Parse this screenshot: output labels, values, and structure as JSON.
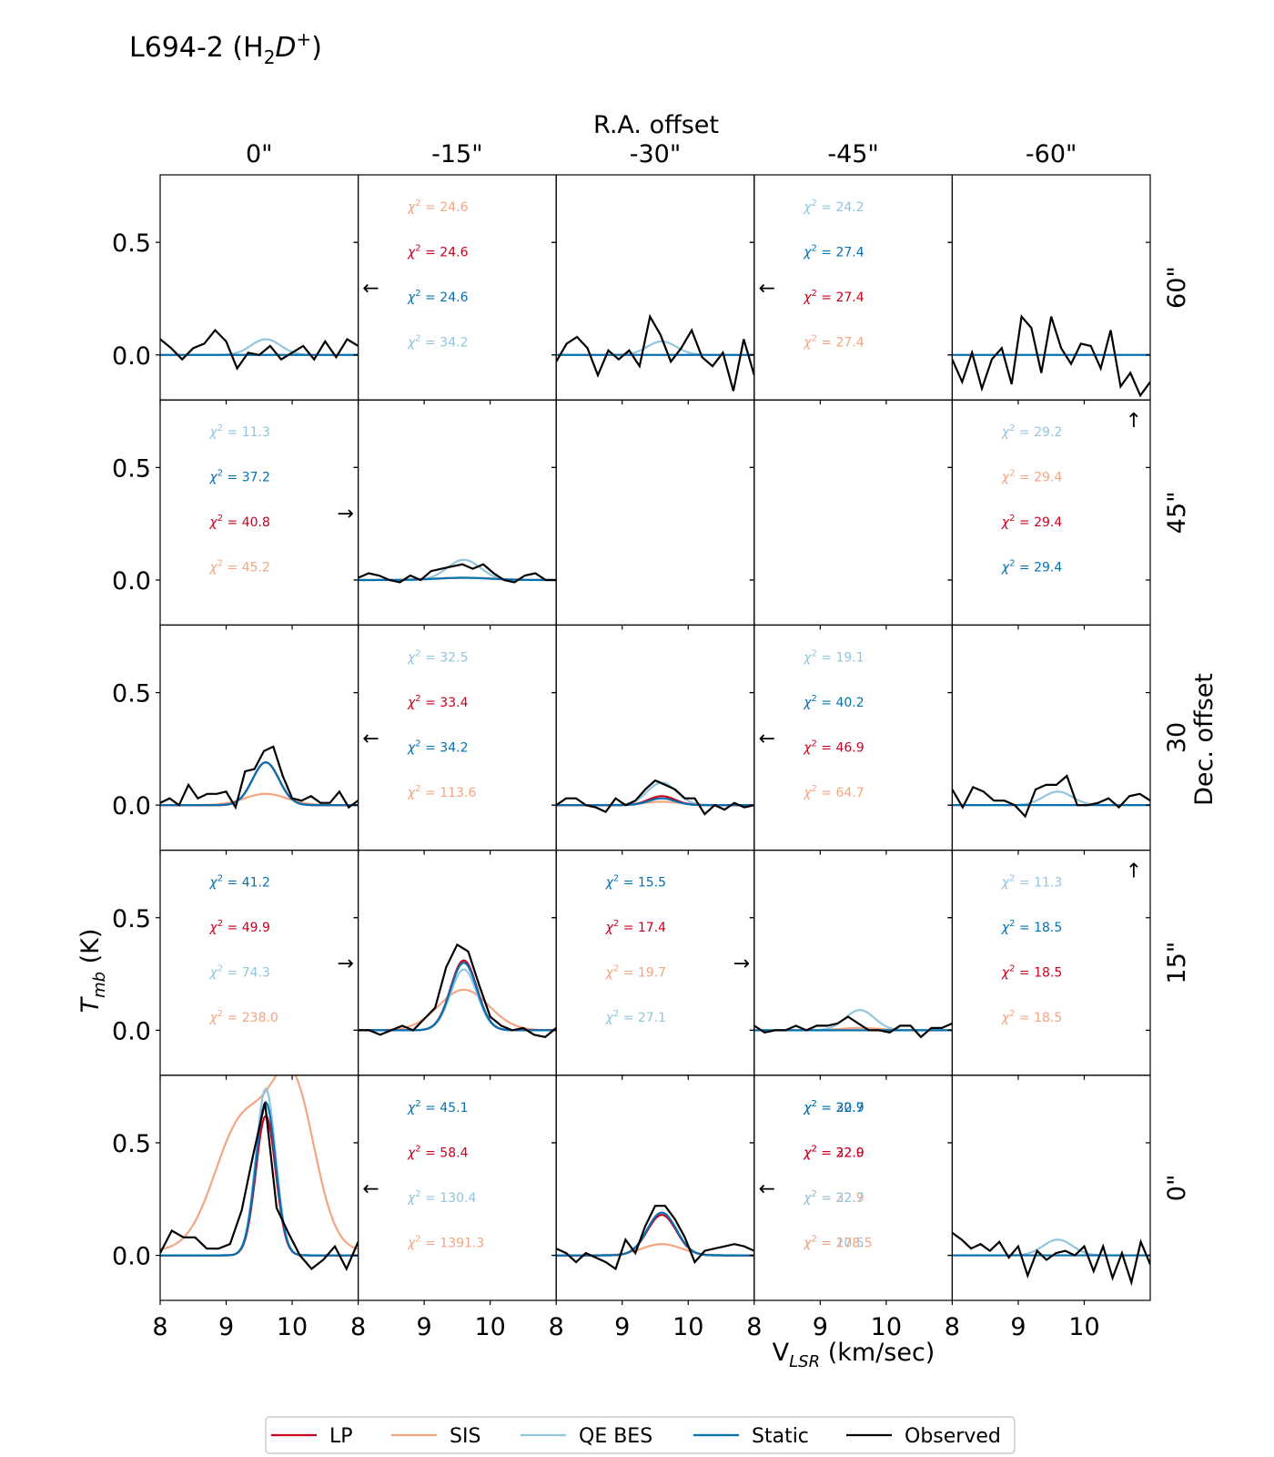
{
  "chart_data": {
    "type": "line",
    "title": "L694-2 (H",
    "title_sub": "2",
    "title_ital": "D",
    "title_sup": "+",
    "title_close": ")",
    "top_label": "R.A. offset",
    "side_label": "Dec. offset",
    "xlabel_main": "V",
    "xlabel_sub": "LSR",
    "xlabel_unit": " (km/sec)",
    "ylabel_main": "T",
    "ylabel_sub": "mb",
    "ylabel_unit": " (K)",
    "col_labels": [
      "0\"",
      "-15\"",
      "-30\"",
      "-45\"",
      "-60\""
    ],
    "row_labels": [
      "60\"",
      "45\"",
      "30",
      "15\"",
      "0\""
    ],
    "x_ticks": [
      8,
      9,
      10
    ],
    "y_ticks": [
      0.0,
      0.5
    ],
    "y_tick_labels": [
      "0.0",
      "0.5"
    ],
    "xlim": [
      8.0,
      11.0
    ],
    "ylim": [
      -0.2,
      0.8
    ],
    "colors": {
      "LP": "#ca0020",
      "SIS": "#f4a582",
      "QE BES": "#92c5de",
      "Static": "#0571b0",
      "Observed": "#000000"
    },
    "legend": [
      "LP",
      "SIS",
      "QE BES",
      "Static",
      "Observed"
    ],
    "chi_prefix": "χ",
    "panels": [
      {
        "row": 0,
        "col": 0,
        "arrow": "",
        "chi": [],
        "models": {
          "qe": [
            9.6,
            0.07,
            0.22
          ]
        },
        "observed": [
          0.07,
          0.03,
          -0.02,
          0.03,
          0.05,
          0.11,
          0.06,
          -0.06,
          0.01,
          0.0,
          0.04,
          -0.02,
          0.01,
          0.04,
          -0.02,
          0.06,
          -0.01,
          0.07,
          0.04
        ]
      },
      {
        "row": 0,
        "col": 1,
        "arrow": "←",
        "chi": [
          {
            "s": "SIS",
            "v": "24.6"
          },
          {
            "s": "LP",
            "v": "24.6"
          },
          {
            "s": "Static",
            "v": "24.6"
          },
          {
            "s": "QE BES",
            "v": "34.2"
          }
        ],
        "models": {},
        "observed": []
      },
      {
        "row": 0,
        "col": 2,
        "arrow": "",
        "chi": [],
        "models": {
          "qe": [
            9.6,
            0.06,
            0.22
          ]
        },
        "observed": [
          -0.03,
          0.05,
          0.08,
          0.03,
          -0.09,
          0.02,
          -0.02,
          0.02,
          -0.05,
          0.17,
          0.09,
          -0.03,
          0.03,
          0.11,
          -0.01,
          -0.05,
          0.01,
          -0.16,
          0.07,
          -0.09
        ]
      },
      {
        "row": 0,
        "col": 3,
        "arrow": "←",
        "chi": [
          {
            "s": "QE BES",
            "v": "24.2"
          },
          {
            "s": "Static",
            "v": "27.4"
          },
          {
            "s": "LP",
            "v": "27.4"
          },
          {
            "s": "SIS",
            "v": "27.4"
          }
        ],
        "models": {},
        "observed": []
      },
      {
        "row": 0,
        "col": 4,
        "arrow": "",
        "chi": [],
        "models": {},
        "observed": [
          -0.02,
          -0.12,
          0.01,
          -0.15,
          -0.02,
          0.03,
          -0.13,
          0.17,
          0.12,
          -0.08,
          0.17,
          0.03,
          -0.04,
          0.05,
          0.04,
          -0.06,
          0.11,
          -0.14,
          -0.08,
          -0.18,
          -0.12
        ]
      },
      {
        "row": 1,
        "col": 0,
        "arrow": "→",
        "chi": [
          {
            "s": "QE BES",
            "v": "11.3"
          },
          {
            "s": "Static",
            "v": "37.2"
          },
          {
            "s": "LP",
            "v": "40.8"
          },
          {
            "s": "SIS",
            "v": "45.2"
          }
        ],
        "models": {},
        "observed": []
      },
      {
        "row": 1,
        "col": 1,
        "arrow": "",
        "chi": [],
        "models": {
          "qe": [
            9.6,
            0.09,
            0.25
          ],
          "st": [
            9.6,
            0.01,
            0.4
          ],
          "sis": [
            9.6,
            0.01,
            0.5
          ]
        },
        "observed": [
          0.01,
          0.03,
          0.02,
          0.0,
          -0.01,
          0.02,
          0.0,
          0.04,
          0.05,
          0.06,
          0.07,
          0.05,
          0.07,
          0.03,
          0.0,
          -0.01,
          0.02,
          0.03,
          0.0,
          0.0
        ]
      },
      {
        "row": 1,
        "col": 2,
        "arrow": "",
        "chi": [],
        "models": {},
        "observed": []
      },
      {
        "row": 1,
        "col": 3,
        "arrow": "",
        "chi": [],
        "models": {},
        "observed": []
      },
      {
        "row": 1,
        "col": 4,
        "arrow": "↑",
        "chi": [
          {
            "s": "QE BES",
            "v": "29.2"
          },
          {
            "s": "SIS",
            "v": "29.4"
          },
          {
            "s": "LP",
            "v": "29.4"
          },
          {
            "s": "Static",
            "v": "29.4"
          }
        ],
        "models": {},
        "observed": []
      },
      {
        "row": 2,
        "col": 0,
        "arrow": "",
        "chi": [],
        "models": {
          "qe": [
            9.6,
            0.19,
            0.2
          ],
          "st": [
            9.6,
            0.19,
            0.2
          ],
          "lp": [
            9.6,
            0.19,
            0.2
          ],
          "sis": [
            9.6,
            0.05,
            0.32
          ]
        },
        "observed": [
          0.01,
          0.03,
          0.0,
          0.09,
          0.03,
          0.05,
          0.05,
          0.06,
          -0.01,
          0.15,
          0.16,
          0.24,
          0.26,
          0.13,
          0.03,
          0.02,
          0.04,
          0.01,
          0.01,
          0.06,
          -0.01,
          0.02
        ]
      },
      {
        "row": 2,
        "col": 1,
        "arrow": "←",
        "chi": [
          {
            "s": "QE BES",
            "v": "32.5"
          },
          {
            "s": "LP",
            "v": "33.4"
          },
          {
            "s": "Static",
            "v": "34.2"
          },
          {
            "s": "SIS",
            "v": "113.6"
          }
        ],
        "models": {},
        "observed": []
      },
      {
        "row": 2,
        "col": 2,
        "arrow": "",
        "chi": [],
        "models": {
          "qe": [
            9.6,
            0.1,
            0.22
          ],
          "lp": [
            9.6,
            0.04,
            0.2
          ],
          "st": [
            9.6,
            0.03,
            0.2
          ],
          "sis": [
            9.6,
            0.015,
            0.3
          ]
        },
        "observed": [
          0.0,
          0.03,
          0.03,
          0.0,
          -0.01,
          -0.03,
          0.03,
          0.0,
          0.02,
          0.07,
          0.11,
          0.09,
          0.07,
          0.03,
          0.03,
          -0.04,
          0.0,
          -0.02,
          0.01,
          -0.01,
          0.0
        ]
      },
      {
        "row": 2,
        "col": 3,
        "arrow": "←",
        "chi": [
          {
            "s": "QE BES",
            "v": "19.1"
          },
          {
            "s": "Static",
            "v": "40.2"
          },
          {
            "s": "LP",
            "v": "46.9"
          },
          {
            "s": "SIS",
            "v": "64.7"
          }
        ],
        "models": {},
        "observed": []
      },
      {
        "row": 2,
        "col": 4,
        "arrow": "",
        "chi": [],
        "models": {
          "qe": [
            9.6,
            0.06,
            0.22
          ]
        },
        "observed": [
          0.07,
          -0.01,
          0.08,
          0.06,
          0.02,
          0.02,
          0.0,
          -0.05,
          0.07,
          0.09,
          0.09,
          0.13,
          0.0,
          0.0,
          0.01,
          0.03,
          -0.01,
          0.04,
          0.05,
          0.02
        ]
      },
      {
        "row": 3,
        "col": 0,
        "arrow": "→",
        "chi": [
          {
            "s": "Static",
            "v": "41.2"
          },
          {
            "s": "LP",
            "v": "49.9"
          },
          {
            "s": "QE BES",
            "v": "74.3"
          },
          {
            "s": "SIS",
            "v": "238.0"
          }
        ],
        "models": {},
        "observed": []
      },
      {
        "row": 3,
        "col": 1,
        "arrow": "",
        "chi": [],
        "models": {
          "sis": [
            9.6,
            0.18,
            0.38
          ],
          "qe": [
            9.6,
            0.27,
            0.2
          ],
          "lp": [
            9.6,
            0.31,
            0.2
          ],
          "st": [
            9.6,
            0.3,
            0.2
          ]
        },
        "observed": [
          0.0,
          0.0,
          -0.02,
          0.0,
          0.02,
          0.0,
          0.05,
          0.1,
          0.28,
          0.38,
          0.35,
          0.2,
          0.06,
          0.02,
          0.0,
          0.01,
          -0.02,
          -0.03,
          0.01
        ]
      },
      {
        "row": 3,
        "col": 2,
        "arrow": "→",
        "chi": [
          {
            "s": "Static",
            "v": "15.5"
          },
          {
            "s": "LP",
            "v": "17.4"
          },
          {
            "s": "SIS",
            "v": "19.7"
          },
          {
            "s": "QE BES",
            "v": "27.1"
          }
        ],
        "models": {},
        "observed": []
      },
      {
        "row": 3,
        "col": 3,
        "arrow": "",
        "chi": [],
        "models": {
          "qe": [
            9.6,
            0.09,
            0.22
          ],
          "sis": [
            9.6,
            0.01,
            0.3
          ]
        },
        "observed": [
          0.02,
          -0.01,
          0.0,
          0.0,
          0.02,
          0.0,
          0.02,
          0.02,
          0.03,
          0.06,
          0.03,
          0.0,
          0.0,
          -0.01,
          0.02,
          0.02,
          -0.03,
          0.01,
          0.01,
          0.03
        ]
      },
      {
        "row": 3,
        "col": 4,
        "arrow": "↑",
        "chi": [
          {
            "s": "QE BES",
            "v": "11.3"
          },
          {
            "s": "Static",
            "v": "18.5"
          },
          {
            "s": "LP",
            "v": "18.5"
          },
          {
            "s": "SIS",
            "v": "18.5"
          }
        ],
        "models": {},
        "observed": []
      },
      {
        "row": 4,
        "col": 0,
        "arrow": "",
        "chi": [],
        "models": {
          "sis": "double",
          "qe": [
            9.6,
            0.74,
            0.15
          ],
          "st": [
            9.6,
            0.68,
            0.15
          ],
          "lp": [
            9.6,
            0.62,
            0.15
          ]
        },
        "observed": [
          0.01,
          0.11,
          0.08,
          0.08,
          0.03,
          0.03,
          0.05,
          0.2,
          0.45,
          0.68,
          0.21,
          0.1,
          0.0,
          -0.06,
          -0.02,
          0.04,
          -0.06,
          0.06
        ]
      },
      {
        "row": 4,
        "col": 1,
        "arrow": "←",
        "chi": [
          {
            "s": "Static",
            "v": "45.1"
          },
          {
            "s": "LP",
            "v": "58.4"
          },
          {
            "s": "QE BES",
            "v": "130.4"
          },
          {
            "s": "SIS",
            "v": "1391.3"
          }
        ],
        "models": {},
        "observed": []
      },
      {
        "row": 4,
        "col": 2,
        "arrow": "",
        "chi": [],
        "models": {
          "st": [
            9.6,
            0.19,
            0.22
          ],
          "qe": [
            9.6,
            0.19,
            0.22
          ],
          "lp": [
            9.6,
            0.18,
            0.22
          ],
          "sis": [
            9.6,
            0.05,
            0.3
          ]
        },
        "observed": [
          0.03,
          0.01,
          -0.03,
          0.01,
          -0.01,
          -0.03,
          -0.06,
          0.07,
          0.01,
          0.13,
          0.22,
          0.22,
          0.16,
          0.08,
          -0.03,
          0.02,
          0.03,
          0.04,
          0.05,
          0.04,
          0.02
        ]
      },
      {
        "row": 4,
        "col": 3,
        "arrow": "←",
        "chi": [
          {
            "s": "Static",
            "v": "22.9"
          },
          {
            "s": "LP",
            "v": "22.0"
          },
          {
            "s": "SIS",
            "v": "22.9"
          },
          {
            "s": "QE BES",
            "v": "20.5"
          }
        ],
        "chi_overlap": [
          {
            "s": "Static",
            "v": "30.7"
          },
          {
            "s": "LP",
            "v": "32.9"
          },
          {
            "s": "QE BES",
            "v": "32.7"
          },
          {
            "s": "SIS",
            "v": "178.5"
          }
        ],
        "models": {},
        "observed": []
      },
      {
        "row": 4,
        "col": 4,
        "arrow": "",
        "chi": [],
        "models": {
          "qe": [
            9.6,
            0.07,
            0.22
          ]
        },
        "observed": [
          0.1,
          0.07,
          0.03,
          0.05,
          0.02,
          0.06,
          -0.01,
          0.04,
          -0.09,
          0.02,
          -0.02,
          0.01,
          0.02,
          0.0,
          0.04,
          -0.07,
          0.04,
          -0.1,
          0.01,
          -0.12,
          0.06,
          -0.04
        ]
      }
    ]
  }
}
